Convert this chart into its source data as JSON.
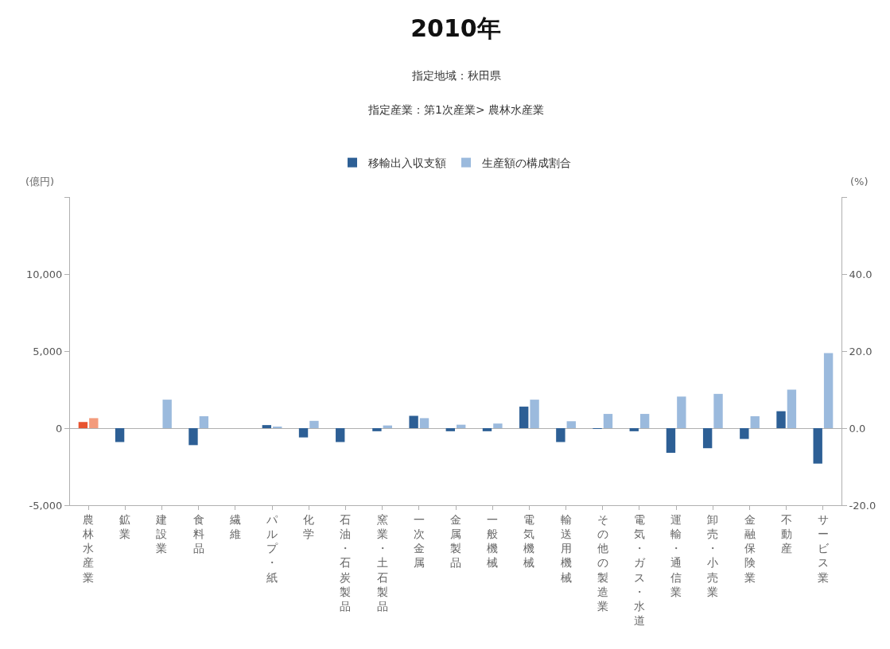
{
  "chart_data": {
    "type": "bar",
    "title": "2010年",
    "subtitle": "指定地域：秋田県",
    "annotations": [
      "指定産業：第1次産業> 農林水産業"
    ],
    "ylabel": "(億円)",
    "y2label": "(%)",
    "legend": "top",
    "categories": [
      "農林水産業",
      "鉱業",
      "建設業",
      "食料品",
      "繊維",
      "パルプ・紙",
      "化学",
      "石油・石炭製品",
      "窯業・土石製品",
      "一次金属",
      "金属製品",
      "一般機械",
      "電気機械",
      "輸送用機械",
      "その他の製造業",
      "電気・ガス・水道",
      "運輸・通信業",
      "卸売・小売業",
      "金融保険業",
      "不動産",
      "サービス業"
    ],
    "series": [
      {
        "name": "移輸出入収支額",
        "color": "#2d5f95",
        "colors": [
          "#e8532f",
          "#2d5f95",
          "#2d5f95",
          "#2d5f95",
          "#2d5f95",
          "#2d5f95",
          "#2d5f95",
          "#2d5f95",
          "#2d5f95",
          "#2d5f95",
          "#2d5f95",
          "#2d5f95",
          "#2d5f95",
          "#2d5f95",
          "#2d5f95",
          "#2d5f95",
          "#2d5f95",
          "#2d5f95",
          "#2d5f95",
          "#2d5f95",
          "#2d5f95"
        ],
        "values": [
          400,
          -900,
          0,
          -1100,
          0,
          200,
          -600,
          -900,
          -200,
          800,
          -200,
          -200,
          1400,
          -900,
          -50,
          -200,
          -1600,
          -1300,
          -700,
          1100,
          -2300
        ]
      },
      {
        "name": "生産額の構成割合",
        "color": "#9bbadd",
        "axis": "y2",
        "colors": [
          "#f39b7c",
          "#9bbadd",
          "#9bbadd",
          "#9bbadd",
          "#9bbadd",
          "#9bbadd",
          "#9bbadd",
          "#9bbadd",
          "#9bbadd",
          "#9bbadd",
          "#9bbadd",
          "#9bbadd",
          "#9bbadd",
          "#9bbadd",
          "#9bbadd",
          "#9bbadd",
          "#9bbadd",
          "#9bbadd",
          "#9bbadd",
          "#9bbadd",
          "#9bbadd"
        ],
        "values": [
          2.6,
          0,
          7.4,
          3.1,
          0,
          0.4,
          1.9,
          0,
          0.7,
          2.6,
          0.9,
          1.2,
          7.4,
          1.8,
          3.7,
          3.7,
          8.2,
          8.9,
          3.1,
          10.0,
          19.5
        ]
      }
    ],
    "ylim": [
      -5000,
      15000
    ],
    "yticks": [
      {
        "value": -5000,
        "label": "-5,000"
      },
      0,
      {
        "value": 5000,
        "label": "5,000"
      },
      {
        "value": 10000,
        "label": "10,000"
      },
      {
        "value": 15000,
        "label": null
      }
    ],
    "y2lim": [
      -20,
      60
    ],
    "y2ticks": [
      {
        "value": -20,
        "label": "-20.0"
      },
      {
        "value": 0,
        "label": "0.0"
      },
      {
        "value": 20,
        "label": "20.0"
      },
      {
        "value": 40,
        "label": "40.0"
      },
      {
        "value": 60,
        "label": null
      }
    ]
  }
}
